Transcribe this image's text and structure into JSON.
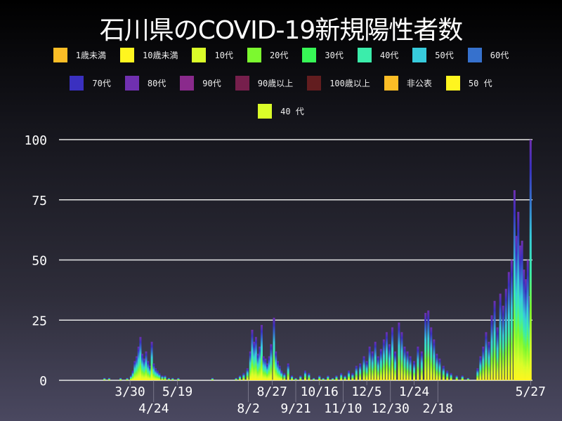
{
  "chart_data": {
    "type": "bar",
    "stacked": true,
    "title": "石川県のCOVID-19新規陽性者数",
    "legend": [
      {
        "name": "1歳未満",
        "color": "#fbbd26"
      },
      {
        "name": "10歳未満",
        "color": "#fff51f"
      },
      {
        "name": "10代",
        "color": "#dafd29"
      },
      {
        "name": "20代",
        "color": "#7cf92f"
      },
      {
        "name": "30代",
        "color": "#37f756"
      },
      {
        "name": "40代",
        "color": "#3bedab"
      },
      {
        "name": "50代",
        "color": "#37cbdc"
      },
      {
        "name": "60代",
        "color": "#3671cd"
      },
      {
        "name": "70代",
        "color": "#3a30c0"
      },
      {
        "name": "80代",
        "color": "#7030b0"
      },
      {
        "name": "90代",
        "color": "#8a2a8c"
      },
      {
        "name": "90歳以上",
        "color": "#761f4c"
      },
      {
        "name": "100歳以上",
        "color": "#621d1f"
      },
      {
        "name": "非公表",
        "color": "#fbbd26"
      },
      {
        "name": "50 代",
        "color": "#fff51f"
      },
      {
        "name": "40 代",
        "color": "#dafd29"
      }
    ],
    "legend_placement": "top",
    "xlim": [
      "2020-01-15",
      "2021-05-29"
    ],
    "ylim": [
      0,
      100
    ],
    "yticks": [
      "0",
      "25",
      "50",
      "75",
      "100"
    ],
    "xticks": [
      {
        "date": "2020-03-30",
        "label": "3/30"
      },
      {
        "date": "2020-04-24",
        "label": "4/24"
      },
      {
        "date": "2020-05-19",
        "label": "5/19"
      },
      {
        "date": "2020-08-02",
        "label": "8/2"
      },
      {
        "date": "2020-08-27",
        "label": "8/27"
      },
      {
        "date": "2020-09-21",
        "label": "9/21"
      },
      {
        "date": "2020-10-16",
        "label": "10/16"
      },
      {
        "date": "2020-11-10",
        "label": "11/10"
      },
      {
        "date": "2020-12-05",
        "label": "12/5"
      },
      {
        "date": "2020-12-30",
        "label": "12/30"
      },
      {
        "date": "2021-01-24",
        "label": "1/24"
      },
      {
        "date": "2021-02-18",
        "label": "2/18"
      },
      {
        "date": "2021-05-27",
        "label": "5/27"
      }
    ],
    "grid": true,
    "totals": [
      [
        "2020-03-03",
        1
      ],
      [
        "2020-03-08",
        1
      ],
      [
        "2020-03-20",
        1
      ],
      [
        "2020-03-27",
        1
      ],
      [
        "2020-03-31",
        2
      ],
      [
        "2020-04-02",
        4
      ],
      [
        "2020-04-04",
        8
      ],
      [
        "2020-04-06",
        10
      ],
      [
        "2020-04-08",
        14
      ],
      [
        "2020-04-10",
        18
      ],
      [
        "2020-04-12",
        11
      ],
      [
        "2020-04-14",
        9
      ],
      [
        "2020-04-16",
        12
      ],
      [
        "2020-04-18",
        8
      ],
      [
        "2020-04-20",
        6
      ],
      [
        "2020-04-22",
        16
      ],
      [
        "2020-04-24",
        7
      ],
      [
        "2020-04-26",
        5
      ],
      [
        "2020-04-28",
        4
      ],
      [
        "2020-04-30",
        3
      ],
      [
        "2020-05-03",
        2
      ],
      [
        "2020-05-06",
        2
      ],
      [
        "2020-05-10",
        1
      ],
      [
        "2020-05-14",
        1
      ],
      [
        "2020-05-20",
        1
      ],
      [
        "2020-06-25",
        1
      ],
      [
        "2020-07-20",
        1
      ],
      [
        "2020-07-24",
        2
      ],
      [
        "2020-07-28",
        3
      ],
      [
        "2020-08-01",
        5
      ],
      [
        "2020-08-04",
        12
      ],
      [
        "2020-08-06",
        21
      ],
      [
        "2020-08-08",
        16
      ],
      [
        "2020-08-10",
        18
      ],
      [
        "2020-08-12",
        11
      ],
      [
        "2020-08-14",
        14
      ],
      [
        "2020-08-16",
        23
      ],
      [
        "2020-08-18",
        10
      ],
      [
        "2020-08-20",
        9
      ],
      [
        "2020-08-22",
        7
      ],
      [
        "2020-08-24",
        10
      ],
      [
        "2020-08-26",
        15
      ],
      [
        "2020-08-29",
        26
      ],
      [
        "2020-08-31",
        12
      ],
      [
        "2020-09-02",
        8
      ],
      [
        "2020-09-04",
        6
      ],
      [
        "2020-09-06",
        4
      ],
      [
        "2020-09-09",
        3
      ],
      [
        "2020-09-13",
        7
      ],
      [
        "2020-09-17",
        2
      ],
      [
        "2020-09-21",
        1
      ],
      [
        "2020-09-26",
        2
      ],
      [
        "2020-10-01",
        4
      ],
      [
        "2020-10-05",
        3
      ],
      [
        "2020-10-10",
        1
      ],
      [
        "2020-10-16",
        2
      ],
      [
        "2020-10-20",
        1
      ],
      [
        "2020-10-25",
        2
      ],
      [
        "2020-10-30",
        1
      ],
      [
        "2020-11-03",
        2
      ],
      [
        "2020-11-08",
        3
      ],
      [
        "2020-11-12",
        2
      ],
      [
        "2020-11-16",
        4
      ],
      [
        "2020-11-20",
        3
      ],
      [
        "2020-11-24",
        6
      ],
      [
        "2020-11-28",
        7
      ],
      [
        "2020-12-02",
        10
      ],
      [
        "2020-12-05",
        8
      ],
      [
        "2020-12-08",
        14
      ],
      [
        "2020-12-11",
        12
      ],
      [
        "2020-12-14",
        16
      ],
      [
        "2020-12-17",
        10
      ],
      [
        "2020-12-20",
        13
      ],
      [
        "2020-12-23",
        17
      ],
      [
        "2020-12-26",
        20
      ],
      [
        "2020-12-29",
        15
      ],
      [
        "2021-01-01",
        22
      ],
      [
        "2021-01-04",
        12
      ],
      [
        "2021-01-08",
        24
      ],
      [
        "2021-01-11",
        20
      ],
      [
        "2021-01-14",
        14
      ],
      [
        "2021-01-17",
        12
      ],
      [
        "2021-01-20",
        10
      ],
      [
        "2021-01-24",
        8
      ],
      [
        "2021-01-28",
        14
      ],
      [
        "2021-02-01",
        12
      ],
      [
        "2021-02-05",
        28
      ],
      [
        "2021-02-08",
        29
      ],
      [
        "2021-02-11",
        22
      ],
      [
        "2021-02-14",
        17
      ],
      [
        "2021-02-17",
        11
      ],
      [
        "2021-02-20",
        9
      ],
      [
        "2021-02-24",
        6
      ],
      [
        "2021-02-28",
        4
      ],
      [
        "2021-03-04",
        3
      ],
      [
        "2021-03-10",
        2
      ],
      [
        "2021-03-16",
        2
      ],
      [
        "2021-03-22",
        1
      ],
      [
        "2021-04-01",
        5
      ],
      [
        "2021-04-04",
        10
      ],
      [
        "2021-04-07",
        14
      ],
      [
        "2021-04-10",
        20
      ],
      [
        "2021-04-13",
        16
      ],
      [
        "2021-04-16",
        27
      ],
      [
        "2021-04-19",
        33
      ],
      [
        "2021-04-22",
        22
      ],
      [
        "2021-04-25",
        36
      ],
      [
        "2021-04-28",
        31
      ],
      [
        "2021-05-01",
        38
      ],
      [
        "2021-05-04",
        45
      ],
      [
        "2021-05-07",
        50
      ],
      [
        "2021-05-10",
        79
      ],
      [
        "2021-05-12",
        60
      ],
      [
        "2021-05-14",
        70
      ],
      [
        "2021-05-16",
        56
      ],
      [
        "2021-05-18",
        58
      ],
      [
        "2021-05-20",
        46
      ],
      [
        "2021-05-22",
        42
      ],
      [
        "2021-05-24",
        50
      ],
      [
        "2021-05-26",
        35
      ],
      [
        "2021-05-27",
        100
      ]
    ]
  }
}
